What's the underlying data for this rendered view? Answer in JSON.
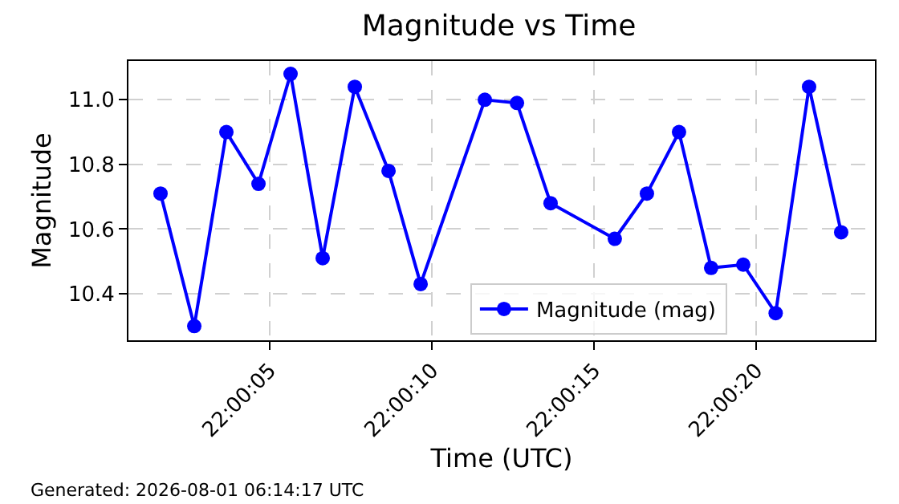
{
  "chart_data": {
    "type": "line",
    "title": "Magnitude vs Time",
    "xlabel": "Time (UTC)",
    "ylabel": "Magnitude",
    "annotations": [
      "Generated: 2026-08-01 06:14:17 UTC"
    ],
    "x": [
      22.000453,
      22.000742,
      22.001017,
      22.001292,
      22.001567,
      22.001842,
      22.002117,
      22.002406,
      22.002681,
      22.003231,
      22.003506,
      22.003794,
      22.004344,
      22.004619,
      22.004894,
      22.005169,
      22.005444,
      22.005722,
      22.006008,
      22.006283
    ],
    "series": [
      {
        "name": "Magnitude (mag)",
        "color": "#0000ff",
        "values": [
          10.71,
          10.3,
          10.9,
          10.74,
          11.08,
          10.51,
          11.04,
          10.78,
          10.43,
          11.0,
          10.99,
          10.68,
          10.57,
          10.71,
          10.9,
          10.48,
          10.49,
          10.34,
          11.04,
          10.59
        ]
      }
    ],
    "xlim": [
      22.000178,
      22.006572
    ],
    "ylim": [
      10.256,
      11.12
    ],
    "xticks": [
      {
        "value": 22.001389,
        "label": "22:00:05"
      },
      {
        "value": 22.002778,
        "label": "22:00:10"
      },
      {
        "value": 22.004167,
        "label": "22:00:15"
      },
      {
        "value": 22.005556,
        "label": "22:00:20"
      }
    ],
    "yticks": [
      {
        "value": 10.4,
        "label": "10.4"
      },
      {
        "value": 10.6,
        "label": "10.6"
      },
      {
        "value": 10.8,
        "label": "10.8"
      },
      {
        "value": 11.0,
        "label": "11.0"
      }
    ],
    "grid": true,
    "legend": "bottom",
    "marker": "circle",
    "line_style": "solid"
  }
}
